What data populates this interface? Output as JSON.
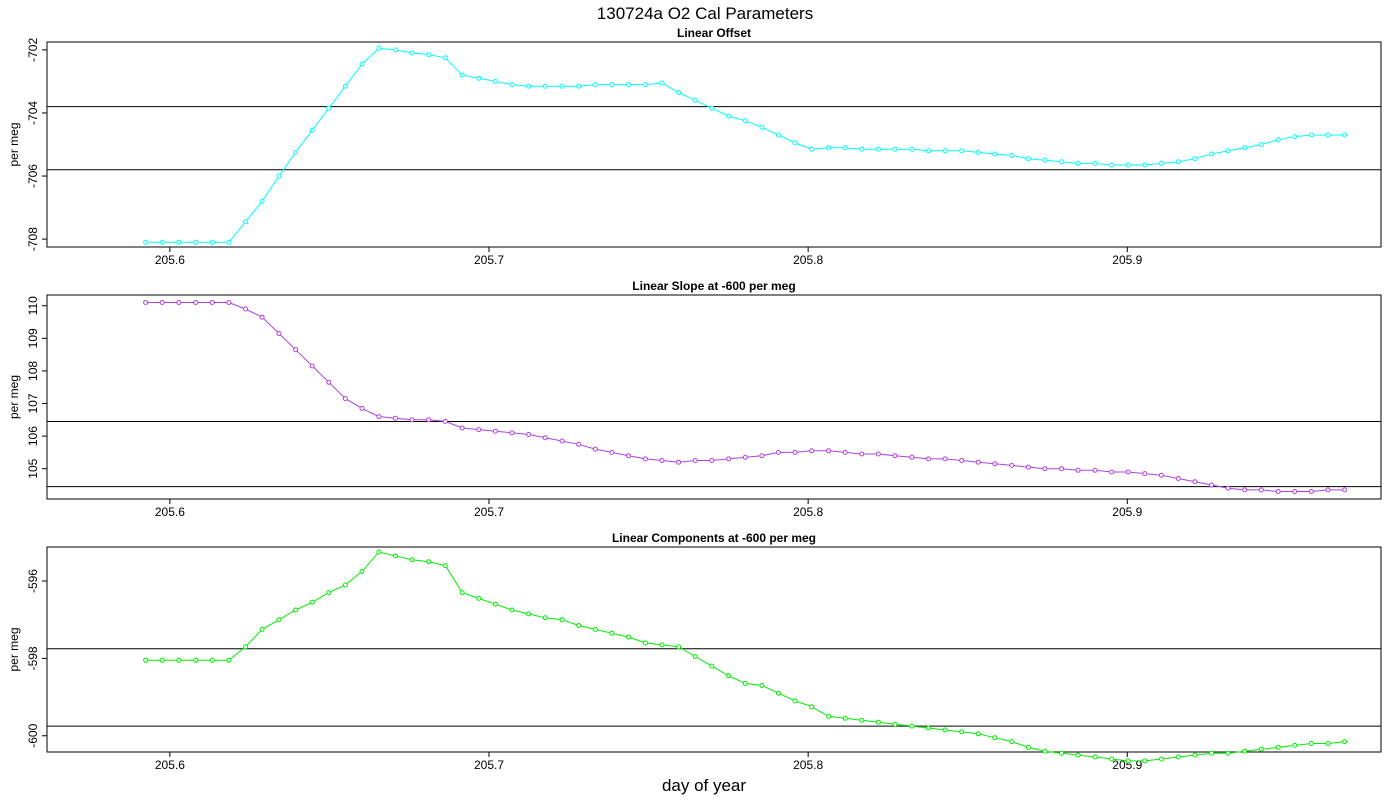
{
  "figure": {
    "title": "130724a   O2 Cal Parameters",
    "xlabel": "day of year"
  },
  "chart_data": [
    {
      "type": "line",
      "title": "Linear Offset",
      "ylabel": "per meg",
      "color": "#00ffff",
      "xlim": [
        205.5615,
        205.9795
      ],
      "ylim": [
        -708.25,
        -701.75
      ],
      "xticks": [
        "205.6",
        "205.7",
        "205.8",
        "205.9"
      ],
      "yticks": [
        "-702",
        "-704",
        "-706",
        "-708"
      ],
      "hlines": [
        -703.8,
        -705.8
      ],
      "x": [
        205.5924,
        205.5976,
        205.6028,
        205.6081,
        205.6133,
        205.6185,
        205.6237,
        205.6289,
        205.6342,
        205.6394,
        205.6446,
        205.6498,
        205.655,
        205.6602,
        205.6655,
        205.6707,
        205.6759,
        205.6811,
        205.6863,
        205.6916,
        205.6968,
        205.702,
        205.7072,
        205.7124,
        205.7176,
        205.7229,
        205.7281,
        205.7333,
        205.7385,
        205.7437,
        205.749,
        205.7542,
        205.7594,
        205.7646,
        205.7698,
        205.7751,
        205.7803,
        205.7855,
        205.7907,
        205.7959,
        205.8011,
        205.8064,
        205.8116,
        205.8168,
        205.822,
        205.8272,
        205.8325,
        205.8377,
        205.8429,
        205.8481,
        205.8533,
        205.8585,
        205.8638,
        205.869,
        205.8742,
        205.8794,
        205.8846,
        205.8899,
        205.8951,
        205.9003,
        205.9055,
        205.9107,
        205.916,
        205.9212,
        205.9264,
        205.9316,
        205.9368,
        205.942,
        205.9473,
        205.9525,
        205.9577,
        205.9629,
        205.9681
      ],
      "y": [
        -708.1,
        -708.1,
        -708.1,
        -708.1,
        -708.1,
        -708.1,
        -707.45,
        -706.8,
        -706.0,
        -705.25,
        -704.55,
        -703.85,
        -703.15,
        -702.45,
        -701.95,
        -702.0,
        -702.1,
        -702.15,
        -702.25,
        -702.8,
        -702.9,
        -703.0,
        -703.1,
        -703.15,
        -703.15,
        -703.15,
        -703.15,
        -703.1,
        -703.1,
        -703.1,
        -703.1,
        -703.05,
        -703.35,
        -703.6,
        -703.85,
        -704.1,
        -704.25,
        -704.45,
        -704.7,
        -704.95,
        -705.15,
        -705.1,
        -705.1,
        -705.15,
        -705.15,
        -705.15,
        -705.15,
        -705.2,
        -705.2,
        -705.2,
        -705.25,
        -705.3,
        -705.35,
        -705.45,
        -705.5,
        -705.55,
        -705.6,
        -705.6,
        -705.65,
        -705.65,
        -705.65,
        -705.6,
        -705.55,
        -705.45,
        -705.3,
        -705.2,
        -705.1,
        -705.0,
        -704.85,
        -704.75,
        -704.7,
        -704.7,
        -704.7
      ]
    },
    {
      "type": "line",
      "title": "Linear Slope at -600 per meg",
      "ylabel": "per meg",
      "color": "#b040e0",
      "xlim": [
        205.5615,
        205.9795
      ],
      "ylim": [
        104.07,
        110.33
      ],
      "xticks": [
        "205.6",
        "205.7",
        "205.8",
        "205.9"
      ],
      "yticks": [
        "105",
        "106",
        "107",
        "108",
        "109",
        "110"
      ],
      "hlines": [
        106.45,
        104.45
      ],
      "x": [
        205.5924,
        205.5976,
        205.6028,
        205.6081,
        205.6133,
        205.6185,
        205.6237,
        205.6289,
        205.6342,
        205.6394,
        205.6446,
        205.6498,
        205.655,
        205.6602,
        205.6655,
        205.6707,
        205.6759,
        205.6811,
        205.6863,
        205.6916,
        205.6968,
        205.702,
        205.7072,
        205.7124,
        205.7176,
        205.7229,
        205.7281,
        205.7333,
        205.7385,
        205.7437,
        205.749,
        205.7542,
        205.7594,
        205.7646,
        205.7698,
        205.7751,
        205.7803,
        205.7855,
        205.7907,
        205.7959,
        205.8011,
        205.8064,
        205.8116,
        205.8168,
        205.822,
        205.8272,
        205.8325,
        205.8377,
        205.8429,
        205.8481,
        205.8533,
        205.8585,
        205.8638,
        205.869,
        205.8742,
        205.8794,
        205.8846,
        205.8899,
        205.8951,
        205.9003,
        205.9055,
        205.9107,
        205.916,
        205.9212,
        205.9264,
        205.9316,
        205.9368,
        205.942,
        205.9473,
        205.9525,
        205.9577,
        205.9629,
        205.9681
      ],
      "y": [
        110.1,
        110.1,
        110.1,
        110.1,
        110.1,
        110.1,
        109.9,
        109.65,
        109.15,
        108.65,
        108.15,
        107.65,
        107.15,
        106.85,
        106.6,
        106.55,
        106.5,
        106.5,
        106.45,
        106.25,
        106.2,
        106.15,
        106.1,
        106.05,
        105.95,
        105.85,
        105.75,
        105.6,
        105.5,
        105.4,
        105.3,
        105.25,
        105.2,
        105.25,
        105.25,
        105.3,
        105.35,
        105.4,
        105.5,
        105.5,
        105.55,
        105.55,
        105.5,
        105.45,
        105.45,
        105.4,
        105.35,
        105.3,
        105.3,
        105.25,
        105.2,
        105.15,
        105.1,
        105.05,
        105.0,
        105.0,
        104.95,
        104.95,
        104.9,
        104.9,
        104.85,
        104.8,
        104.7,
        104.6,
        104.5,
        104.4,
        104.35,
        104.35,
        104.3,
        104.3,
        104.3,
        104.35,
        104.35
      ]
    },
    {
      "type": "line",
      "title": "Linear Components at -600 per meg",
      "ylabel": "per meg",
      "color": "#00ee00",
      "xlim": [
        205.5615,
        205.9795
      ],
      "ylim": [
        -600.42,
        -595.12
      ],
      "xticks": [
        "205.6",
        "205.7",
        "205.8",
        "205.9"
      ],
      "yticks": [
        "-596",
        "-598",
        "-600"
      ],
      "hlines": [
        -597.75,
        -599.75
      ],
      "x": [
        205.5924,
        205.5976,
        205.6028,
        205.6081,
        205.6133,
        205.6185,
        205.6237,
        205.6289,
        205.6342,
        205.6394,
        205.6446,
        205.6498,
        205.655,
        205.6602,
        205.6655,
        205.6707,
        205.6759,
        205.6811,
        205.6863,
        205.6916,
        205.6968,
        205.702,
        205.7072,
        205.7124,
        205.7176,
        205.7229,
        205.7281,
        205.7333,
        205.7385,
        205.7437,
        205.749,
        205.7542,
        205.7594,
        205.7646,
        205.7698,
        205.7751,
        205.7803,
        205.7855,
        205.7907,
        205.7959,
        205.8011,
        205.8064,
        205.8116,
        205.8168,
        205.822,
        205.8272,
        205.8325,
        205.8377,
        205.8429,
        205.8481,
        205.8533,
        205.8585,
        205.8638,
        205.869,
        205.8742,
        205.8794,
        205.8846,
        205.8899,
        205.8951,
        205.9003,
        205.9055,
        205.9107,
        205.916,
        205.9212,
        205.9264,
        205.9316,
        205.9368,
        205.942,
        205.9473,
        205.9525,
        205.9577,
        205.9629,
        205.9681
      ],
      "y": [
        -598.05,
        -598.05,
        -598.05,
        -598.05,
        -598.05,
        -598.05,
        -597.7,
        -597.25,
        -597.0,
        -596.75,
        -596.55,
        -596.3,
        -596.1,
        -595.75,
        -595.25,
        -595.35,
        -595.45,
        -595.5,
        -595.6,
        -596.3,
        -596.45,
        -596.6,
        -596.75,
        -596.85,
        -596.95,
        -597.0,
        -597.15,
        -597.25,
        -597.35,
        -597.45,
        -597.6,
        -597.65,
        -597.7,
        -597.95,
        -598.2,
        -598.45,
        -598.65,
        -598.7,
        -598.9,
        -599.1,
        -599.25,
        -599.5,
        -599.55,
        -599.6,
        -599.65,
        -599.7,
        -599.75,
        -599.8,
        -599.85,
        -599.9,
        -599.95,
        -600.05,
        -600.15,
        -600.3,
        -600.4,
        -600.45,
        -600.5,
        -600.55,
        -600.6,
        -600.65,
        -600.65,
        -600.6,
        -600.55,
        -600.5,
        -600.45,
        -600.45,
        -600.4,
        -600.35,
        -600.3,
        -600.25,
        -600.2,
        -600.2,
        -600.15
      ]
    }
  ]
}
